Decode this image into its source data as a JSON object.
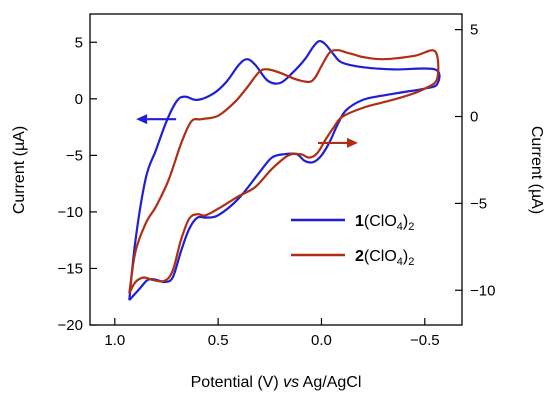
{
  "chart_data": {
    "type": "line",
    "xlabel_parts": [
      "Potential (V) ",
      "vs",
      " Ag/AgCl"
    ],
    "ylabel_left": "Current (µA)",
    "ylabel_right": "Current (µA)",
    "xlim": [
      1.12,
      -0.68
    ],
    "ylim_left": [
      -20,
      7.5
    ],
    "ylim_right": [
      -12,
      5.9
    ],
    "x_ticks": [
      1.0,
      0.5,
      0.0,
      -0.5
    ],
    "x_tick_labels": [
      "1.0",
      "0.5",
      "0.0",
      "−0.5"
    ],
    "y_left_ticks": [
      5,
      0,
      -5,
      -10,
      -15,
      -20
    ],
    "y_left_tick_labels": [
      "5",
      "0",
      "−5",
      "−10",
      "−15",
      "−20"
    ],
    "y_right_ticks": [
      5,
      0,
      -5,
      -10
    ],
    "y_right_tick_labels": [
      "5",
      "0",
      "−5",
      "−10"
    ],
    "grid": false,
    "legend_position": "lower-right",
    "series": [
      {
        "name_bold": "1",
        "name_rest": "(ClO",
        "sub1": "4",
        "close": ")",
        "sub2": "2",
        "axis": "left",
        "color": "#1f1fd6",
        "x": [
          0.93,
          0.9,
          0.85,
          0.8,
          0.75,
          0.7,
          0.66,
          0.6,
          0.52,
          0.46,
          0.4,
          0.36,
          0.32,
          0.26,
          0.2,
          0.14,
          0.08,
          0.04,
          0.01,
          -0.02,
          -0.06,
          -0.1,
          -0.2,
          -0.35,
          -0.55,
          -0.56,
          -0.5,
          -0.4,
          -0.3,
          -0.2,
          -0.12,
          -0.08,
          -0.04,
          0.0,
          0.04,
          0.08,
          0.12,
          0.18,
          0.24,
          0.3,
          0.4,
          0.5,
          0.56,
          0.6,
          0.64,
          0.68,
          0.72,
          0.76,
          0.8,
          0.84,
          0.88,
          0.93
        ],
        "y": [
          -17.8,
          -12.5,
          -7.0,
          -4.5,
          -2.0,
          -0.2,
          0.2,
          -0.1,
          0.5,
          1.5,
          3.0,
          3.5,
          3.0,
          1.6,
          1.4,
          2.3,
          3.5,
          4.6,
          5.1,
          4.8,
          3.9,
          3.2,
          2.8,
          2.6,
          2.6,
          1.3,
          0.9,
          0.6,
          0.3,
          -0.1,
          -1.0,
          -2.2,
          -3.8,
          -5.0,
          -5.6,
          -5.5,
          -4.9,
          -4.9,
          -5.2,
          -6.5,
          -8.8,
          -10.3,
          -10.5,
          -10.5,
          -11.5,
          -13.5,
          -15.8,
          -16.2,
          -16.0,
          -16.0,
          -16.8,
          -17.8
        ]
      },
      {
        "name_bold": "2",
        "name_rest": "(ClO",
        "sub1": "4",
        "close": ")",
        "sub2": "2",
        "axis": "left",
        "color": "#b02e13",
        "x": [
          0.93,
          0.9,
          0.85,
          0.8,
          0.74,
          0.68,
          0.63,
          0.58,
          0.5,
          0.42,
          0.36,
          0.3,
          0.26,
          0.2,
          0.12,
          0.06,
          0.03,
          0.0,
          -0.04,
          -0.08,
          -0.12,
          -0.16,
          -0.2,
          -0.3,
          -0.45,
          -0.55,
          -0.56,
          -0.5,
          -0.4,
          -0.3,
          -0.2,
          -0.1,
          -0.06,
          -0.02,
          0.02,
          0.06,
          0.1,
          0.16,
          0.24,
          0.32,
          0.4,
          0.48,
          0.56,
          0.6,
          0.64,
          0.68,
          0.72,
          0.76,
          0.82,
          0.86,
          0.9,
          0.93
        ],
        "y": [
          -17.2,
          -13.5,
          -11.0,
          -9.5,
          -7.2,
          -4.0,
          -2.0,
          -1.8,
          -1.5,
          -0.3,
          1.0,
          2.4,
          2.6,
          2.3,
          1.7,
          1.5,
          1.9,
          2.9,
          4.1,
          4.3,
          4.1,
          3.9,
          3.7,
          3.5,
          3.8,
          4.2,
          1.8,
          0.9,
          0.2,
          -0.3,
          -0.8,
          -1.6,
          -2.5,
          -3.6,
          -4.8,
          -5.2,
          -4.9,
          -5.0,
          -6.2,
          -7.8,
          -8.6,
          -9.5,
          -10.3,
          -10.2,
          -10.6,
          -12.5,
          -15.2,
          -16.1,
          -16.0,
          -15.8,
          -16.2,
          -17.2
        ]
      }
    ],
    "annotations": [
      {
        "kind": "arrow",
        "points_to": "left-axis",
        "x": 0.8,
        "y_left": -1.8,
        "color": "#1f1fd6"
      },
      {
        "kind": "arrow",
        "points_to": "right-axis",
        "x": -0.08,
        "y_left": -3.9,
        "color": "#b02e13"
      }
    ]
  }
}
